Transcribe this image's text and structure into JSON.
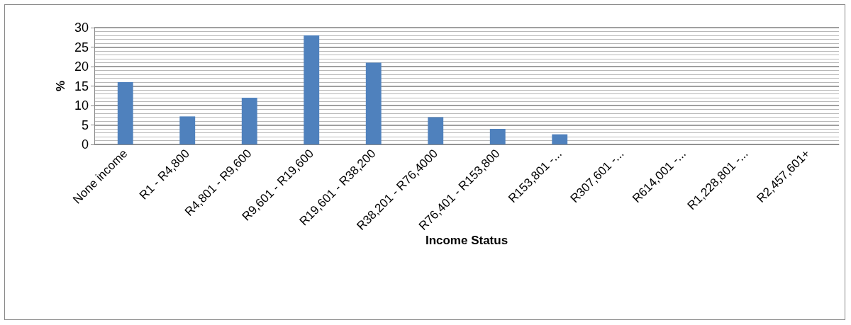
{
  "chart_data": {
    "type": "bar",
    "xlabel": "Income Status",
    "ylabel": "%",
    "categories": [
      "None income",
      "R1 - R4,800",
      "R4,801 - R9,600",
      "R9,601 - R19,600",
      "R19,601 - R38,200",
      "R38,201 - R76,4000",
      "R76,401 - R153,800",
      "R153,801 -...",
      "R307,601 -...",
      "R614,001 -...",
      "R1,228,801 -...",
      "R2,457,601+"
    ],
    "values": [
      16,
      7.2,
      12,
      28,
      21,
      7,
      4,
      2.6,
      0,
      0,
      0,
      0
    ],
    "color": "#4f81bd",
    "ylim": [
      0,
      30
    ],
    "yticks": [
      0,
      5,
      10,
      15,
      20,
      25,
      30
    ],
    "grid": true
  }
}
